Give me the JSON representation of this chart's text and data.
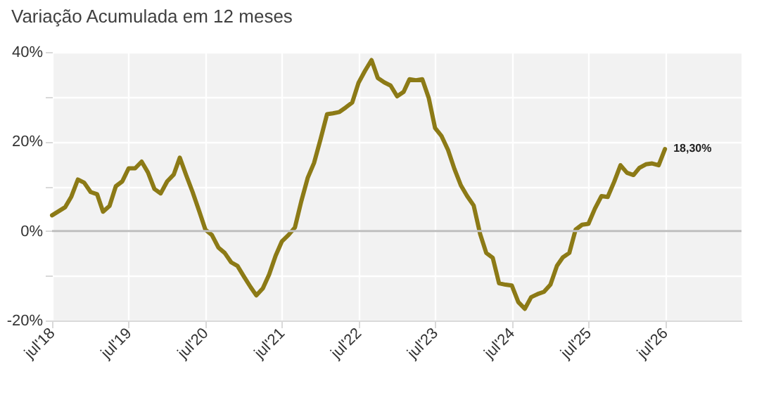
{
  "chart_data": {
    "type": "line",
    "title": "Variação Acumulada em 12 meses",
    "x": [
      "2018-07",
      "2018-09",
      "2018-10",
      "2018-11",
      "2018-12",
      "2019-01",
      "2019-02",
      "2019-03",
      "2019-04",
      "2019-05",
      "2019-06",
      "2019-07",
      "2019-08",
      "2019-09",
      "2019-10",
      "2019-11",
      "2019-12",
      "2020-01",
      "2020-02",
      "2020-03",
      "2020-04",
      "2020-05",
      "2020-06",
      "2020-07",
      "2020-08",
      "2020-09",
      "2020-10",
      "2020-11",
      "2020-12",
      "2021-01",
      "2021-02",
      "2021-03",
      "2021-04",
      "2021-05",
      "2021-06",
      "2021-07",
      "2021-08",
      "2021-09",
      "2021-10",
      "2021-11",
      "2021-12",
      "2022-01",
      "2022-02",
      "2022-03",
      "2022-04",
      "2022-05",
      "2022-06",
      "2022-07",
      "2022-08",
      "2022-09",
      "2022-10",
      "2022-11",
      "2022-12",
      "2023-01",
      "2023-02",
      "2023-03",
      "2023-04",
      "2023-05",
      "2023-06",
      "2023-07",
      "2023-08",
      "2023-09",
      "2023-10",
      "2023-11",
      "2023-12",
      "2024-01",
      "2024-02",
      "2024-03",
      "2024-04",
      "2024-05",
      "2024-06",
      "2024-07",
      "2024-08",
      "2024-09",
      "2024-10",
      "2024-11",
      "2024-12",
      "2025-01",
      "2025-02",
      "2025-03",
      "2025-04",
      "2025-05",
      "2025-06",
      "2025-07",
      "2025-08",
      "2025-09",
      "2025-10",
      "2025-11",
      "2025-12",
      "2026-01",
      "2026-02",
      "2026-03",
      "2026-04",
      "2026-05",
      "2026-06",
      "2026-07"
    ],
    "series": [
      {
        "color": "#8c7a16",
        "values": [
          3.5,
          5.3,
          7.7,
          11.5,
          10.8,
          8.7,
          8.2,
          4.3,
          5.6,
          10,
          11.1,
          14,
          14,
          15.5,
          13.1,
          9.4,
          8.4,
          11.1,
          12.6,
          16.4,
          12.4,
          8.7,
          4.5,
          0.3,
          -0.9,
          -3.7,
          -4.9,
          -7,
          -7.8,
          -10.2,
          -12.5,
          -14.4,
          -12.8,
          -9.7,
          -5.5,
          -2.3,
          -0.9,
          0.8,
          6.6,
          11.9,
          15.2,
          20.5,
          26.1,
          26.3,
          26.6,
          27.6,
          28.7,
          33.1,
          35.8,
          38.2,
          34.2,
          33.2,
          32.5,
          30.1,
          31.1,
          33.9,
          33.7,
          33.9,
          29.7,
          23,
          21.2,
          18.1,
          13.9,
          10.2,
          7.8,
          5.7,
          -0.7,
          -4.9,
          -6,
          -11.7,
          -12,
          -12.2,
          -15.9,
          -17.4,
          -14.8,
          -14.1,
          -13.6,
          -12,
          -7.8,
          -5.9,
          -4.9,
          0.3,
          1.4,
          1.6,
          5,
          7.8,
          7.6,
          11,
          14.7,
          13,
          12.5,
          14.1,
          14.9,
          15.1,
          14.7,
          18.3
        ]
      }
    ],
    "xlim": [
      "2018-07",
      "2027-07"
    ],
    "xticks": [
      {
        "value": "2018-07",
        "label": "jul'18"
      },
      {
        "value": "2019-07",
        "label": "jul'19"
      },
      {
        "value": "2020-07",
        "label": "jul'20"
      },
      {
        "value": "2021-07",
        "label": "jul'21"
      },
      {
        "value": "2022-07",
        "label": "jul'22"
      },
      {
        "value": "2023-07",
        "label": "jul'23"
      },
      {
        "value": "2024-07",
        "label": "jul'24"
      },
      {
        "value": "2025-07",
        "label": "jul'25"
      },
      {
        "value": "2026-07",
        "label": "jul'26"
      }
    ],
    "ylim": [
      -20,
      40
    ],
    "yticks": [
      {
        "value": -20,
        "label": "-20%"
      },
      {
        "value": -10,
        "label": null
      },
      {
        "value": 0,
        "label": "0%"
      },
      {
        "value": 10,
        "label": null
      },
      {
        "value": 20,
        "label": "20%"
      },
      {
        "value": 30,
        "label": null
      },
      {
        "value": 40,
        "label": "40%"
      }
    ],
    "grid": true,
    "ref_lines": [
      {
        "axis": "y",
        "value": 0,
        "color": "#bfbfbf"
      }
    ],
    "annotations": [
      {
        "text": "18,30%",
        "x": "2026-07",
        "y": 18.3
      }
    ]
  }
}
